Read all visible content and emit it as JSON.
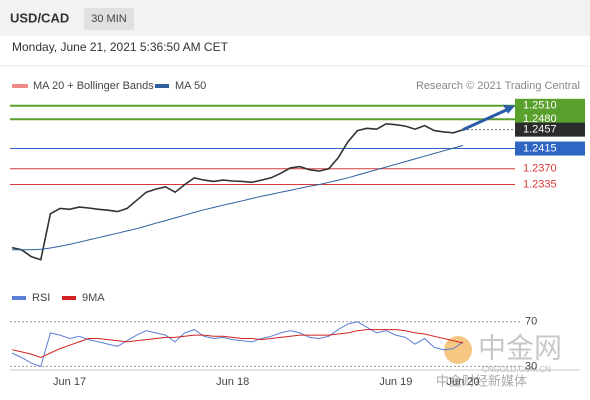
{
  "header": {
    "symbol": "USD/CAD",
    "interval": "30 MIN",
    "datetime": "Monday, June 21, 2021 5:36:50 AM CET"
  },
  "credit": "Research © 2021 Trading Central",
  "watermark": {
    "brand": "中金网",
    "site": "CNGOLD.COM.CN",
    "tagline": "中金财经新媒体"
  },
  "chart_data": [
    {
      "type": "line",
      "categories": [
        null,
        null,
        null,
        null,
        null,
        null,
        "Jun 17",
        null,
        null,
        null,
        null,
        null,
        null,
        null,
        null,
        null,
        null,
        null,
        null,
        null,
        null,
        null,
        null,
        "Jun 18",
        null,
        null,
        null,
        null,
        null,
        null,
        null,
        null,
        null,
        null,
        null,
        null,
        null,
        null,
        null,
        null,
        "Jun 19",
        null,
        null,
        null,
        null,
        null,
        null,
        "Jun 20"
      ],
      "ylim": [
        1.2134,
        1.2534
      ],
      "bands_label": "MA 20 + Bollinger Bands",
      "bands_color": "#ee8a8a",
      "series": [
        {
          "color": "#333333",
          "values": [
            1.2195,
            1.219,
            1.2175,
            1.2168,
            1.227,
            1.2282,
            1.228,
            1.2285,
            1.2283,
            1.228,
            1.2278,
            1.2275,
            1.2282,
            1.23,
            1.2318,
            1.2325,
            1.233,
            1.2318,
            1.2335,
            1.235,
            1.2345,
            1.2342,
            1.2345,
            1.2343,
            1.2342,
            1.234,
            1.2345,
            1.235,
            1.236,
            1.2372,
            1.2375,
            1.2368,
            1.2365,
            1.237,
            1.2395,
            1.243,
            1.2455,
            1.246,
            1.2458,
            1.247,
            1.2468,
            1.2465,
            1.2458,
            1.2466,
            1.2455,
            1.2452,
            1.245,
            1.2457
          ]
        },
        {
          "name": "MA 50",
          "color": "#2e5f9e",
          "values": [
            1.219,
            1.219,
            1.219,
            1.2191,
            1.2194,
            1.2198,
            1.2202,
            1.2207,
            1.2212,
            1.2217,
            1.2222,
            1.2227,
            1.2232,
            1.2237,
            1.2243,
            1.2249,
            1.2255,
            1.2261,
            1.2267,
            1.2273,
            1.2279,
            1.2284,
            1.2289,
            1.2294,
            1.2299,
            1.2304,
            1.2309,
            1.2313,
            1.2318,
            1.2322,
            1.2327,
            1.2331,
            1.2335,
            1.234,
            1.2345,
            1.235,
            1.2356,
            1.2362,
            1.2368,
            1.2374,
            1.238,
            1.2386,
            1.2392,
            1.2398,
            1.2404,
            1.241,
            1.2416,
            1.2422
          ]
        }
      ],
      "levels": [
        {
          "value": 1.251,
          "label": "1.2510",
          "color": "#5aa02c",
          "style": "box"
        },
        {
          "value": 1.248,
          "label": "1.2480",
          "color": "#5aa02c",
          "style": "box"
        },
        {
          "value": 1.2457,
          "label": "1.2457",
          "color": "#2b2b2b",
          "style": "current"
        },
        {
          "value": 1.2415,
          "label": "1.2415",
          "color": "#2f66c4",
          "style": "box"
        },
        {
          "value": 1.237,
          "label": "1.2370",
          "color": "#d83a3a",
          "style": "text"
        },
        {
          "value": 1.2335,
          "label": "1.2335",
          "color": "#d83a3a",
          "style": "text"
        }
      ]
    },
    {
      "type": "line",
      "ylim": [
        25,
        85
      ],
      "yticks": [
        30,
        70
      ],
      "series": [
        {
          "name": "RSI",
          "color": "#5b7fd6",
          "values": [
            42,
            38,
            33,
            30,
            60,
            58,
            55,
            57,
            54,
            52,
            50,
            48,
            53,
            58,
            62,
            60,
            58,
            52,
            60,
            63,
            57,
            55,
            56,
            54,
            53,
            52,
            55,
            57,
            60,
            62,
            60,
            56,
            55,
            57,
            63,
            68,
            70,
            65,
            60,
            62,
            58,
            56,
            50,
            55,
            47,
            45,
            46,
            52
          ]
        },
        {
          "name": "9MA",
          "color": "#d22222",
          "values": [
            45,
            43,
            41,
            38,
            42,
            46,
            49,
            52,
            55,
            55,
            54,
            53,
            52,
            53,
            54,
            55,
            56,
            56,
            57,
            58,
            58,
            57,
            57,
            56,
            55,
            55,
            54,
            55,
            56,
            57,
            58,
            58,
            58,
            58,
            59,
            60,
            62,
            63,
            63,
            63,
            63,
            62,
            60,
            59,
            57,
            55,
            53,
            51
          ]
        }
      ]
    }
  ]
}
